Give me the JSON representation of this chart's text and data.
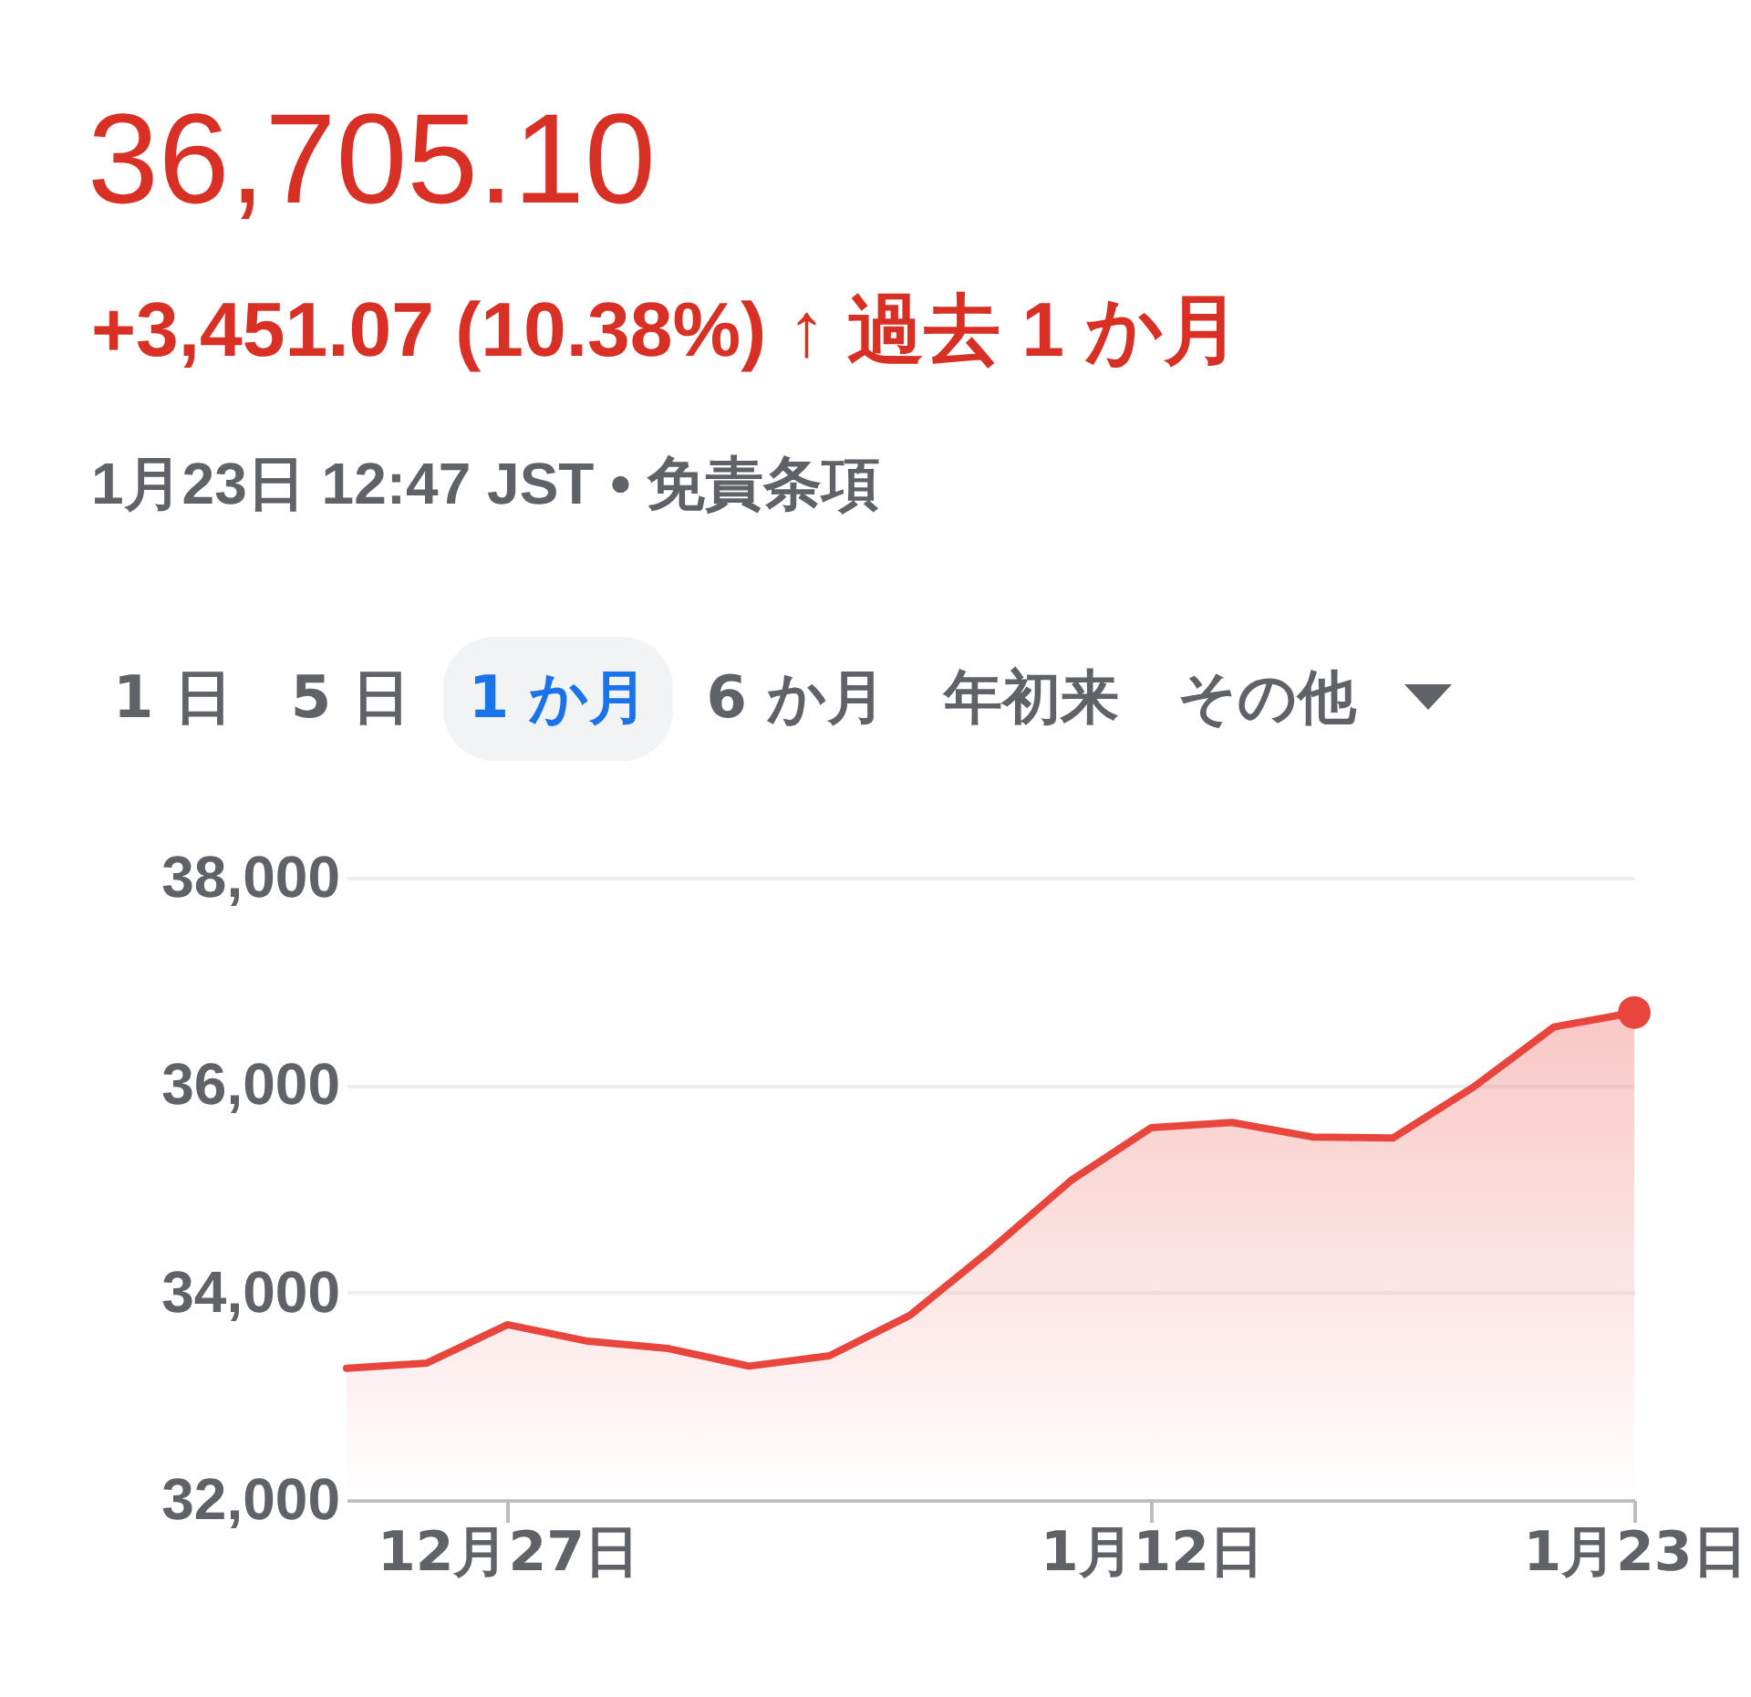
{
  "chart_data": {
    "type": "area",
    "title": "36,705.10",
    "subtitle": "+3,451.07 (10.38%) ↑ 過去 1 か月",
    "annotations": [
      "1月23日 12:47 JST • 免責条項",
      "1 日",
      "5 日",
      "1 か月",
      "6 か月",
      "年初来",
      "その他"
    ],
    "categories": [
      null,
      null,
      "12月27日",
      null,
      null,
      null,
      null,
      null,
      null,
      null,
      "1月12日",
      null,
      null,
      null,
      null,
      null,
      "1月23日"
    ],
    "series": [
      {
        "color": "#e8453c",
        "values": [
          33270,
          33320,
          33690,
          33530,
          33460,
          33290,
          33390,
          33780,
          34410,
          35080,
          35590,
          35640,
          35500,
          35490,
          35980,
          36560,
          36700
        ]
      },
      {
        "type": "scatter",
        "color": "#e8453c",
        "x": [
          "1月23日"
        ],
        "values": [
          36700
        ]
      }
    ],
    "ylim": [
      32000,
      38000
    ],
    "yticks": [
      {
        "value": 32000,
        "label": "32,000"
      },
      {
        "value": 34000,
        "label": "34,000"
      },
      {
        "value": 36000,
        "label": "36,000"
      },
      {
        "value": 38000,
        "label": "38,000"
      }
    ],
    "grid": "y"
  }
}
